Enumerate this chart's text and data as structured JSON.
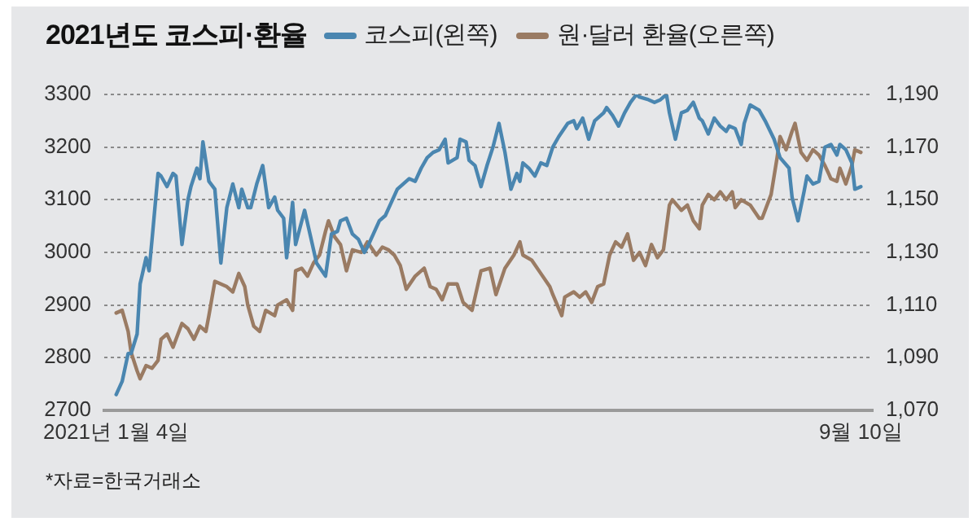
{
  "chart_data": {
    "type": "line",
    "title": "2021년도 코스피·환율",
    "annotations": [
      "*자료=한국거래소"
    ],
    "xlim": [
      "2020-12-31",
      "2021-09-14"
    ],
    "xticks": [
      {
        "value": "2021-01-04",
        "label": "2021년 1월 4일"
      },
      {
        "value": "2021-09-10",
        "label": "9월 10일"
      }
    ],
    "ylim": [
      2700,
      3300
    ],
    "yticks": [
      2700,
      2800,
      2900,
      3000,
      3100,
      3200,
      3300
    ],
    "y2lim": [
      1070,
      1190
    ],
    "y2ticks": [
      {
        "value": 1070,
        "label": "1,070"
      },
      {
        "value": 1090,
        "label": "1,090"
      },
      {
        "value": 1110,
        "label": "1,110"
      },
      {
        "value": 1130,
        "label": "1,130"
      },
      {
        "value": 1150,
        "label": "1,150"
      },
      {
        "value": 1170,
        "label": "1,170"
      },
      {
        "value": 1190,
        "label": "1,190"
      }
    ],
    "grid": "y",
    "legend": "top",
    "series": [
      {
        "name": "코스피(왼쪽)",
        "color": "#4a86b0",
        "x": [
          "2021-01-04",
          "2021-01-06",
          "2021-01-08",
          "2021-01-09",
          "2021-01-11",
          "2021-01-12",
          "2021-01-14",
          "2021-01-15",
          "2021-01-16",
          "2021-01-18",
          "2021-01-19",
          "2021-01-21",
          "2021-01-23",
          "2021-01-24",
          "2021-01-26",
          "2021-01-28",
          "2021-01-29",
          "2021-01-31",
          "2021-02-01",
          "2021-02-02",
          "2021-02-04",
          "2021-02-06",
          "2021-02-08",
          "2021-02-10",
          "2021-02-12",
          "2021-02-14",
          "2021-02-15",
          "2021-02-17",
          "2021-02-18",
          "2021-02-20",
          "2021-02-22",
          "2021-02-24",
          "2021-02-26",
          "2021-02-27",
          "2021-03-01",
          "2021-03-02",
          "2021-03-04",
          "2021-03-05",
          "2021-03-08",
          "2021-03-10",
          "2021-03-12",
          "2021-03-15",
          "2021-03-17",
          "2021-03-19",
          "2021-03-20",
          "2021-03-22",
          "2021-03-24",
          "2021-03-26",
          "2021-03-28",
          "2021-03-29",
          "2021-03-31",
          "2021-04-02",
          "2021-04-04",
          "2021-04-06",
          "2021-04-08",
          "2021-04-10",
          "2021-04-12",
          "2021-04-14",
          "2021-04-16",
          "2021-04-18",
          "2021-04-20",
          "2021-04-22",
          "2021-04-24",
          "2021-04-25",
          "2021-04-28",
          "2021-04-29",
          "2021-05-01",
          "2021-05-02",
          "2021-05-04",
          "2021-05-06",
          "2021-05-08",
          "2021-05-10",
          "2021-05-12",
          "2021-05-14",
          "2021-05-16",
          "2021-05-18",
          "2021-05-19",
          "2021-05-20",
          "2021-05-22",
          "2021-05-24",
          "2021-05-26",
          "2021-05-28",
          "2021-05-30",
          "2021-06-01",
          "2021-06-04",
          "2021-06-06",
          "2021-06-07",
          "2021-06-09",
          "2021-06-11",
          "2021-06-13",
          "2021-06-16",
          "2021-06-17",
          "2021-06-19",
          "2021-06-21",
          "2021-06-23",
          "2021-06-25",
          "2021-06-27",
          "2021-06-28",
          "2021-07-01",
          "2021-07-03",
          "2021-07-05",
          "2021-07-07",
          "2021-07-08",
          "2021-07-10",
          "2021-07-12",
          "2021-07-14",
          "2021-07-16",
          "2021-07-18",
          "2021-07-19",
          "2021-07-21",
          "2021-07-23",
          "2021-07-25",
          "2021-07-27",
          "2021-07-28",
          "2021-07-30",
          "2021-08-01",
          "2021-08-02",
          "2021-08-04",
          "2021-08-07",
          "2021-08-09",
          "2021-08-12",
          "2021-08-14",
          "2021-08-17",
          "2021-08-18",
          "2021-08-20",
          "2021-08-22",
          "2021-08-23",
          "2021-08-25",
          "2021-08-27",
          "2021-08-29",
          "2021-08-31",
          "2021-09-02",
          "2021-09-03",
          "2021-09-05",
          "2021-09-07",
          "2021-09-08",
          "2021-09-10"
        ],
        "values": [
          2730,
          2755,
          2808,
          2808,
          2845,
          2940,
          2990,
          2965,
          3025,
          3150,
          3145,
          3125,
          3150,
          3145,
          3015,
          3100,
          3125,
          3160,
          3140,
          3210,
          3135,
          3120,
          2980,
          3085,
          3130,
          3085,
          3120,
          3085,
          3085,
          3130,
          3165,
          3085,
          3105,
          3080,
          3065,
          2990,
          3095,
          3015,
          3080,
          3030,
          2980,
          2955,
          3035,
          3040,
          3060,
          3065,
          3035,
          3025,
          3000,
          3010,
          3035,
          3060,
          3070,
          3095,
          3120,
          3130,
          3140,
          3135,
          3160,
          3180,
          3190,
          3195,
          3215,
          3170,
          3180,
          3215,
          3210,
          3175,
          3165,
          3125,
          3165,
          3200,
          3245,
          3190,
          3120,
          3150,
          3135,
          3170,
          3160,
          3145,
          3170,
          3165,
          3200,
          3220,
          3245,
          3250,
          3235,
          3255,
          3215,
          3250,
          3265,
          3275,
          3260,
          3240,
          3265,
          3285,
          3300,
          3295,
          3290,
          3285,
          3290,
          3300,
          3265,
          3215,
          3265,
          3270,
          3285,
          3255,
          3250,
          3225,
          3255,
          3240,
          3230,
          3240,
          3235,
          3205,
          3245,
          3280,
          3270,
          3250,
          3215,
          3180,
          3160,
          3105,
          3060,
          3115,
          3145,
          3130,
          3135,
          3200,
          3205,
          3185,
          3205,
          3195,
          3170,
          3120,
          3125
        ]
      },
      {
        "name": "원·달러 환율(오른쪽)",
        "color": "#9a7b63",
        "axis": "y2",
        "x": [
          "2021-01-04",
          "2021-01-06",
          "2021-01-08",
          "2021-01-09",
          "2021-01-11",
          "2021-01-12",
          "2021-01-14",
          "2021-01-16",
          "2021-01-18",
          "2021-01-19",
          "2021-01-21",
          "2021-01-23",
          "2021-01-24",
          "2021-01-26",
          "2021-01-28",
          "2021-01-30",
          "2021-02-01",
          "2021-02-03",
          "2021-02-04",
          "2021-02-06",
          "2021-02-08",
          "2021-02-10",
          "2021-02-12",
          "2021-02-14",
          "2021-02-16",
          "2021-02-17",
          "2021-02-19",
          "2021-02-21",
          "2021-02-23",
          "2021-02-26",
          "2021-02-27",
          "2021-03-02",
          "2021-03-04",
          "2021-03-05",
          "2021-03-07",
          "2021-03-09",
          "2021-03-11",
          "2021-03-13",
          "2021-03-15",
          "2021-03-16",
          "2021-03-18",
          "2021-03-20",
          "2021-03-22",
          "2021-03-24",
          "2021-03-27",
          "2021-03-29",
          "2021-04-01",
          "2021-04-03",
          "2021-04-05",
          "2021-04-07",
          "2021-04-09",
          "2021-04-11",
          "2021-04-14",
          "2021-04-17",
          "2021-04-19",
          "2021-04-21",
          "2021-04-23",
          "2021-04-25",
          "2021-04-28",
          "2021-04-30",
          "2021-05-03",
          "2021-05-06",
          "2021-05-09",
          "2021-05-11",
          "2021-05-14",
          "2021-05-17",
          "2021-05-19",
          "2021-05-20",
          "2021-05-23",
          "2021-05-26",
          "2021-05-29",
          "2021-05-30",
          "2021-06-02",
          "2021-06-03",
          "2021-06-06",
          "2021-06-08",
          "2021-06-10",
          "2021-06-12",
          "2021-06-14",
          "2021-06-16",
          "2021-06-18",
          "2021-06-20",
          "2021-06-22",
          "2021-06-24",
          "2021-06-26",
          "2021-06-28",
          "2021-06-30",
          "2021-07-02",
          "2021-07-04",
          "2021-07-06",
          "2021-07-08",
          "2021-07-09",
          "2021-07-12",
          "2021-07-14",
          "2021-07-16",
          "2021-07-18",
          "2021-07-19",
          "2021-07-21",
          "2021-07-23",
          "2021-07-25",
          "2021-07-27",
          "2021-07-29",
          "2021-07-30",
          "2021-08-01",
          "2021-08-04",
          "2021-08-07",
          "2021-08-08",
          "2021-08-11",
          "2021-08-13",
          "2021-08-14",
          "2021-08-16",
          "2021-08-18",
          "2021-08-19",
          "2021-08-21",
          "2021-08-23",
          "2021-08-25",
          "2021-08-27",
          "2021-08-29",
          "2021-08-31",
          "2021-09-02",
          "2021-09-03",
          "2021-09-05",
          "2021-09-07",
          "2021-09-08",
          "2021-09-10"
        ],
        "values": [
          1107,
          1108,
          1100,
          1092,
          1085,
          1082,
          1087,
          1086,
          1089,
          1097,
          1099,
          1094,
          1097,
          1103,
          1101,
          1097,
          1102,
          1100,
          1106,
          1119,
          1118,
          1117,
          1115,
          1122,
          1117,
          1110,
          1102,
          1100,
          1108,
          1106,
          1110,
          1112,
          1108,
          1123,
          1124,
          1121,
          1126,
          1129,
          1138,
          1142,
          1136,
          1133,
          1123,
          1131,
          1130,
          1134,
          1129,
          1132,
          1131,
          1129,
          1125,
          1116,
          1121,
          1124,
          1117,
          1116,
          1112,
          1118,
          1118,
          1111,
          1108,
          1123,
          1124,
          1114,
          1124,
          1129,
          1134,
          1129,
          1127,
          1122,
          1117,
          1114,
          1106,
          1113,
          1115,
          1113,
          1115,
          1111,
          1117,
          1118,
          1129,
          1134,
          1132,
          1137,
          1127,
          1130,
          1125,
          1133,
          1128,
          1131,
          1148,
          1150,
          1146,
          1148,
          1142,
          1139,
          1148,
          1152,
          1150,
          1153,
          1150,
          1153,
          1147,
          1150,
          1148,
          1143,
          1143,
          1152,
          1166,
          1174,
          1169,
          1176,
          1179,
          1168,
          1165,
          1169,
          1167,
          1163,
          1158,
          1157,
          1162,
          1156,
          1163,
          1169,
          1168
        ]
      }
    ]
  }
}
